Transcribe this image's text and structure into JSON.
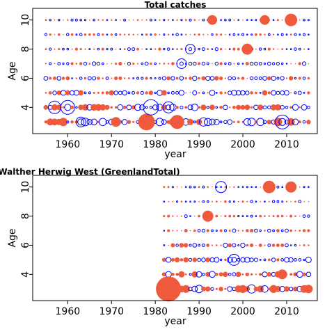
{
  "chart_data": [
    {
      "type": "scatter",
      "title": "Total catches",
      "xlabel": "year",
      "ylabel": "Age",
      "xlim": [
        1952,
        2017
      ],
      "ylim": [
        2.2,
        10.8
      ],
      "xticks": [
        1960,
        1970,
        1980,
        1990,
        2000,
        2010
      ],
      "yticks": [
        4,
        6,
        8,
        10
      ],
      "grid": false,
      "legend": "none",
      "colors": {
        "positive": "#ef5a3c",
        "negative": "#0000ff"
      },
      "years": [
        1955,
        2015
      ],
      "ages": [
        3,
        10
      ],
      "bubbles": [
        {
          "year": 1957,
          "age": 4,
          "r": 9,
          "sign": "neg"
        },
        {
          "year": 1960,
          "age": 4,
          "r": 10,
          "sign": "neg"
        },
        {
          "year": 1963,
          "age": 3,
          "r": 7,
          "sign": "neg"
        },
        {
          "year": 1971,
          "age": 3,
          "r": 7,
          "sign": "pos"
        },
        {
          "year": 1978,
          "age": 3,
          "r": 12,
          "sign": "pos"
        },
        {
          "year": 1979,
          "age": 4,
          "r": 11,
          "sign": "neg"
        },
        {
          "year": 1983,
          "age": 4,
          "r": 8,
          "sign": "neg"
        },
        {
          "year": 1985,
          "age": 3,
          "r": 10,
          "sign": "pos"
        },
        {
          "year": 1986,
          "age": 7,
          "r": 7,
          "sign": "neg"
        },
        {
          "year": 1988,
          "age": 8,
          "r": 7,
          "sign": "neg"
        },
        {
          "year": 1993,
          "age": 10,
          "r": 7,
          "sign": "pos"
        },
        {
          "year": 2001,
          "age": 8,
          "r": 8,
          "sign": "pos"
        },
        {
          "year": 2005,
          "age": 10,
          "r": 7,
          "sign": "pos"
        },
        {
          "year": 2009,
          "age": 3,
          "r": 10,
          "sign": "neg"
        },
        {
          "year": 2011,
          "age": 10,
          "r": 9,
          "sign": "pos"
        }
      ]
    },
    {
      "type": "scatter",
      "title": "Walther Herwig West (GreenlandTotal)",
      "xlabel": "year",
      "ylabel": "Age",
      "xlim": [
        1952,
        2017
      ],
      "ylim": [
        2.2,
        10.8
      ],
      "xticks": [
        1960,
        1970,
        1980,
        1990,
        2000,
        2010
      ],
      "yticks": [
        4,
        6,
        8,
        10
      ],
      "grid": false,
      "legend": "none",
      "colors": {
        "positive": "#ef5a3c",
        "negative": "#0000ff"
      },
      "years": [
        1982,
        2015
      ],
      "ages": [
        3,
        10
      ],
      "bubbles": [
        {
          "year": 1983,
          "age": 3,
          "r": 18,
          "sign": "pos"
        },
        {
          "year": 1992,
          "age": 8,
          "r": 8,
          "sign": "pos"
        },
        {
          "year": 1995,
          "age": 10,
          "r": 8,
          "sign": "neg"
        },
        {
          "year": 1998,
          "age": 5,
          "r": 8,
          "sign": "neg"
        },
        {
          "year": 2006,
          "age": 10,
          "r": 9,
          "sign": "pos"
        },
        {
          "year": 2009,
          "age": 4,
          "r": 7,
          "sign": "pos"
        },
        {
          "year": 2011,
          "age": 10,
          "r": 8,
          "sign": "pos"
        }
      ]
    }
  ]
}
